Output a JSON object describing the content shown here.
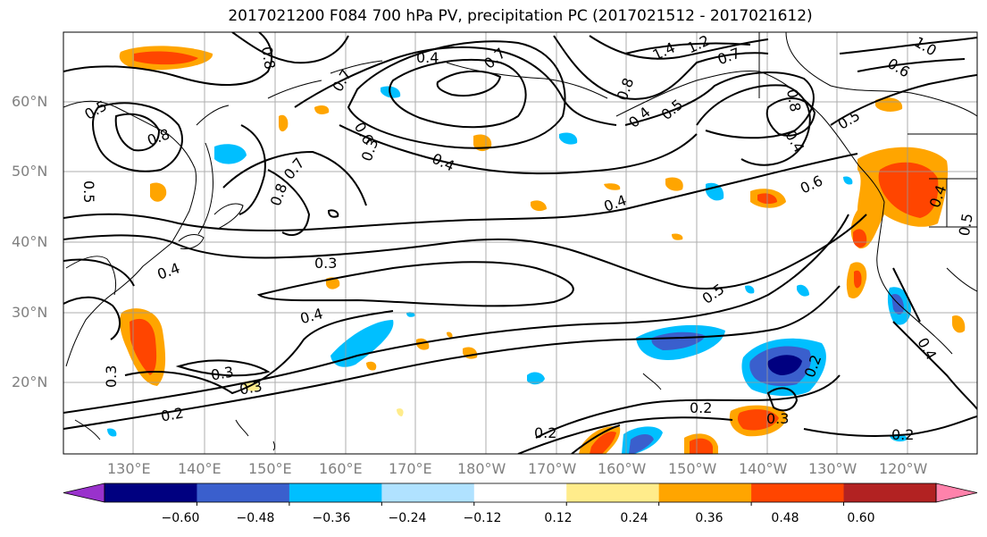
{
  "title": "2017021200 F084 700 hPa PV, precipitation PC (2017021512 - 2017021612)",
  "lat_labels": [
    "60°N",
    "50°N",
    "40°N",
    "30°N",
    "20°N"
  ],
  "lon_labels": [
    "130°E",
    "140°E",
    "150°E",
    "160°E",
    "170°E",
    "180°W",
    "170°W",
    "160°W",
    "150°W",
    "140°W",
    "130°W",
    "120°W"
  ],
  "contour_labels": [
    "0.8",
    "0.5",
    "0.8",
    "0.7",
    "0.4",
    "0.7",
    "0.6",
    "0.5",
    "0.3",
    "0.8",
    "0.7",
    "0.4",
    "0.8",
    "1.4",
    "1.2",
    "0.7",
    "1.0",
    "0.6",
    "0.8",
    "0.4",
    "0.5",
    "0.4",
    "0.5",
    "0.3",
    "0.4",
    "0.6",
    "0.4",
    "0.5",
    "0.4",
    "0.3",
    "0.3",
    "0.2",
    "0.2",
    "0.2",
    "0.3",
    "0.2",
    "0.2",
    "0.4",
    "0.3",
    "0.4",
    "0.5"
  ],
  "colorbar": {
    "ticks": [
      "−0.60",
      "−0.48",
      "−0.36",
      "−0.24",
      "−0.12",
      "0.12",
      "0.24",
      "0.36",
      "0.48",
      "0.60"
    ],
    "colors": [
      "#9932cc",
      "#000080",
      "#3a5fcd",
      "#00bfff",
      "#b0e2ff",
      "#ffffff",
      "#ffec8b",
      "#ffa500",
      "#ff4500",
      "#b22222",
      "#ff82ab"
    ]
  },
  "colors": {
    "contour": "#000000",
    "grid": "#999999",
    "axis_label": "#808080"
  }
}
